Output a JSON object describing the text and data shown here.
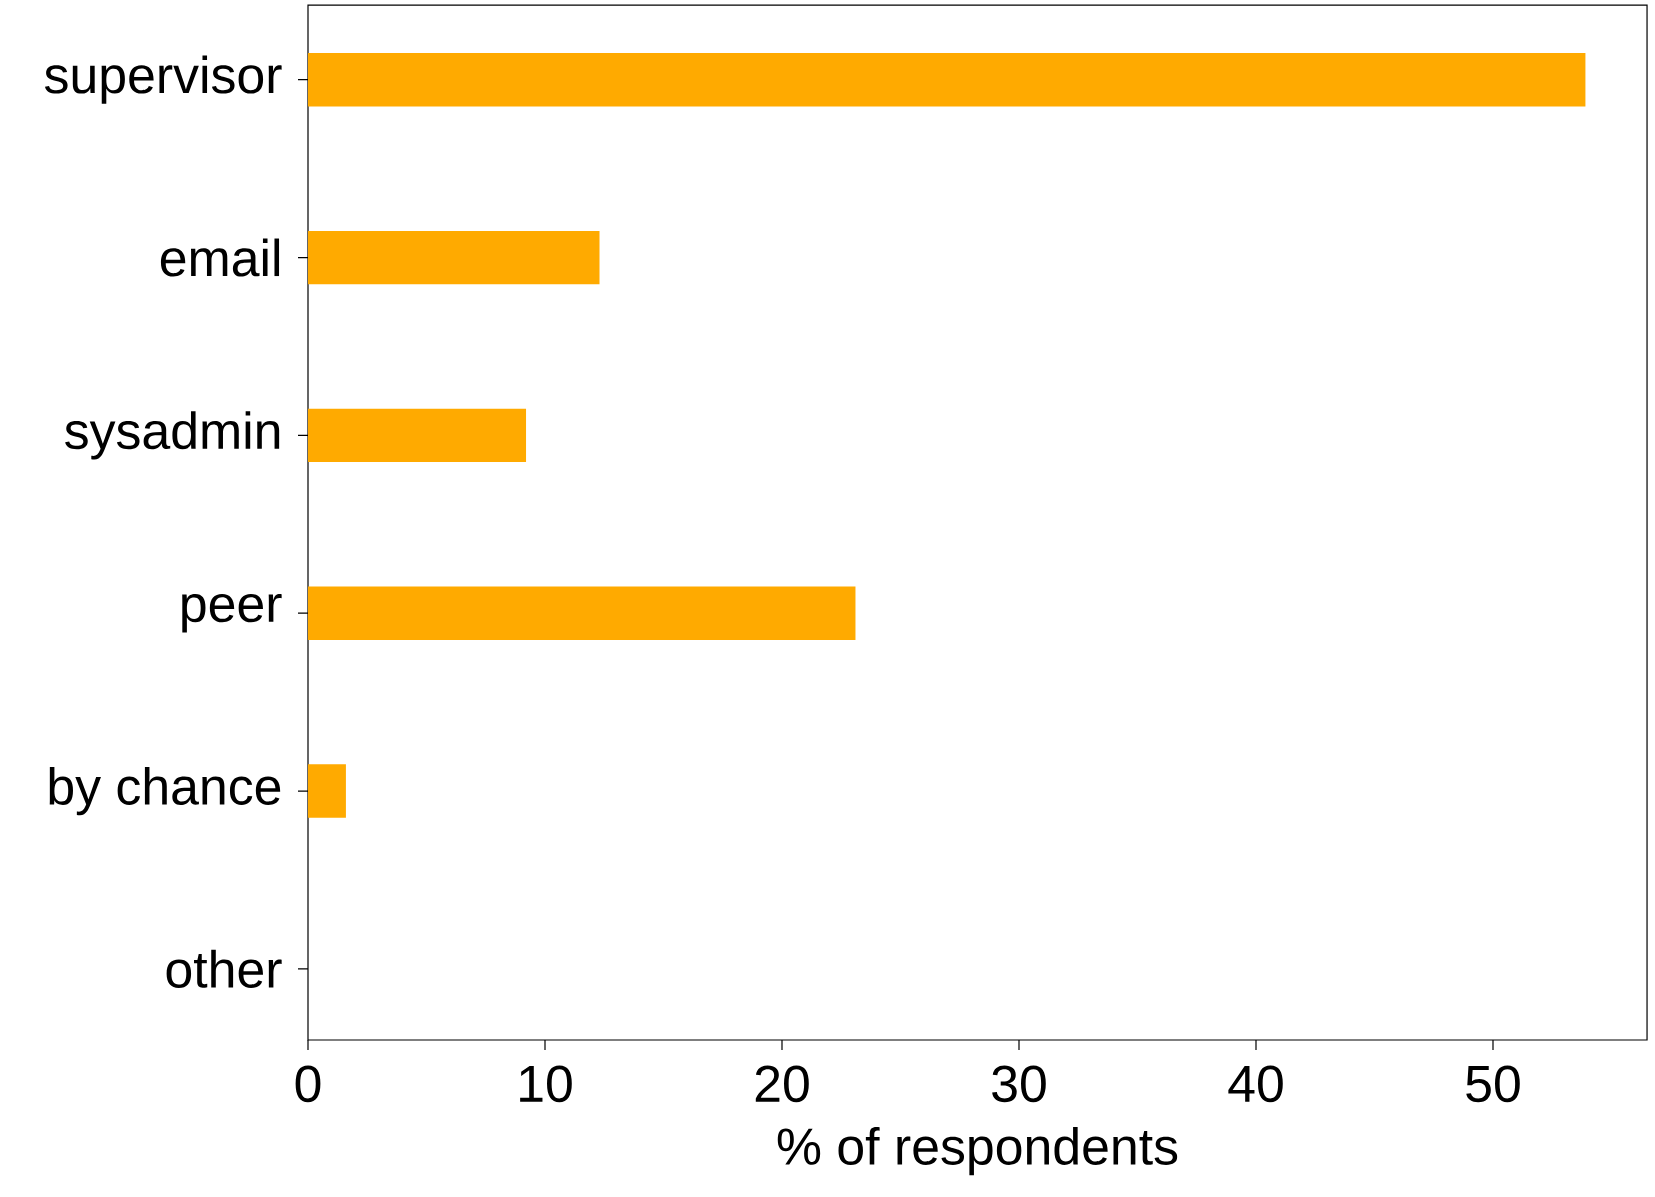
{
  "chart_data": {
    "type": "bar",
    "orientation": "horizontal",
    "xlabel": "% of respondents",
    "categories": [
      "supervisor",
      "email",
      "sysadmin",
      "peer",
      "by chance",
      "other"
    ],
    "values": [
      53.9,
      12.3,
      9.2,
      23.1,
      1.6,
      0
    ],
    "color": "#ffaa00",
    "xlim": [
      0,
      56.5
    ],
    "xticks": [
      0,
      10,
      20,
      30,
      40,
      50
    ]
  }
}
